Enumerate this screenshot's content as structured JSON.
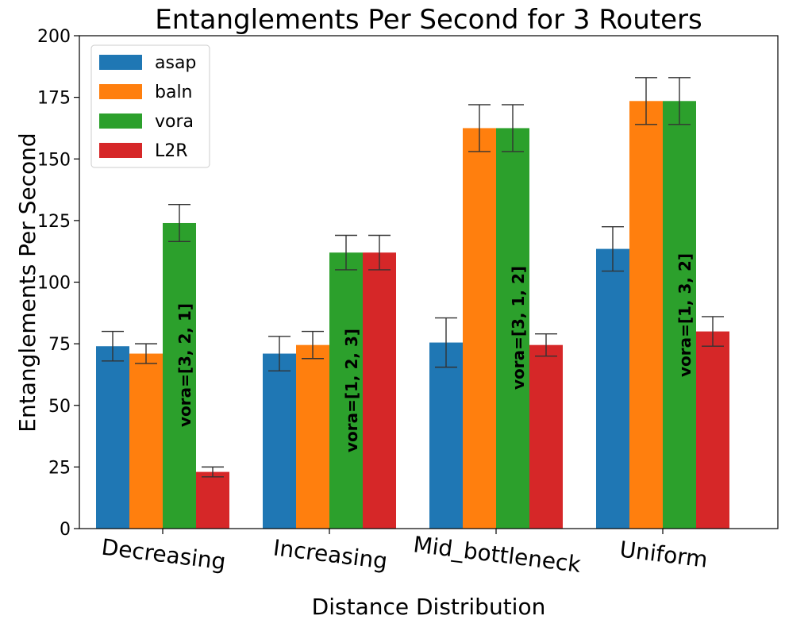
{
  "chart_data": {
    "type": "bar",
    "title": "Entanglements Per Second for 3 Routers",
    "xlabel": "Distance Distribution",
    "ylabel": "Entanglements Per Second",
    "ylim": [
      0,
      200
    ],
    "yticks": [
      0,
      25,
      50,
      75,
      100,
      125,
      150,
      175,
      200
    ],
    "categories": [
      "Decreasing",
      "Increasing",
      "Mid_bottleneck",
      "Uniform"
    ],
    "series": [
      {
        "name": "asap",
        "color": "#1f77b4",
        "values": [
          74,
          71,
          75.5,
          113.5
        ],
        "errors": [
          6,
          7,
          10,
          9
        ]
      },
      {
        "name": "baln",
        "color": "#ff7f0e",
        "values": [
          71,
          74.5,
          162.5,
          173.5
        ],
        "errors": [
          4,
          5.5,
          9.5,
          9.5
        ]
      },
      {
        "name": "vora",
        "color": "#2ca02c",
        "values": [
          124,
          112,
          162.5,
          173.5
        ],
        "errors": [
          7.5,
          7,
          9.5,
          9.5
        ]
      },
      {
        "name": "L2R",
        "color": "#d62728",
        "values": [
          23,
          112,
          74.5,
          80
        ],
        "errors": [
          2,
          7,
          4.5,
          6
        ]
      }
    ],
    "annotations": [
      "vora=[3, 2, 1]",
      "vora=[1, 2, 3]",
      "vora=[3, 1, 2]",
      "vora=[1, 3, 2]"
    ],
    "legend": "top-left",
    "grid": false
  }
}
